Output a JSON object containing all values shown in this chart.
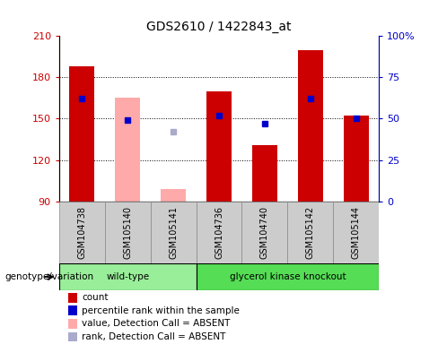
{
  "title": "GDS2610 / 1422843_at",
  "samples": [
    "GSM104738",
    "GSM105140",
    "GSM105141",
    "GSM104736",
    "GSM104740",
    "GSM105142",
    "GSM105144"
  ],
  "counts": [
    188,
    165,
    99,
    170,
    131,
    200,
    152
  ],
  "count_absent": [
    null,
    165,
    99,
    null,
    null,
    null,
    null
  ],
  "percentile_ranks": [
    62,
    49,
    null,
    52,
    47,
    62,
    50
  ],
  "rank_absent": [
    null,
    null,
    42,
    null,
    null,
    null,
    null
  ],
  "bar_bottom": 90,
  "ylim_left": [
    90,
    210
  ],
  "ylim_right": [
    0,
    100
  ],
  "yticks_left": [
    90,
    120,
    150,
    180,
    210
  ],
  "yticks_right": [
    0,
    25,
    50,
    75,
    100
  ],
  "ytick_labels_right": [
    "0",
    "25",
    "50",
    "75",
    "100%"
  ],
  "color_count": "#cc0000",
  "color_absent_bar": "#ffaaaa",
  "color_rank_blue": "#0000cc",
  "color_rank_absent": "#aaaacc",
  "groups": [
    {
      "name": "wild-type",
      "start": 0,
      "end": 2,
      "color": "#99ee99"
    },
    {
      "name": "glycerol kinase knockout",
      "start": 3,
      "end": 6,
      "color": "#55dd55"
    }
  ],
  "bar_width": 0.55,
  "legend_items": [
    {
      "label": "count",
      "color": "#cc0000"
    },
    {
      "label": "percentile rank within the sample",
      "color": "#0000cc"
    },
    {
      "label": "value, Detection Call = ABSENT",
      "color": "#ffaaaa"
    },
    {
      "label": "rank, Detection Call = ABSENT",
      "color": "#aaaacc"
    }
  ]
}
